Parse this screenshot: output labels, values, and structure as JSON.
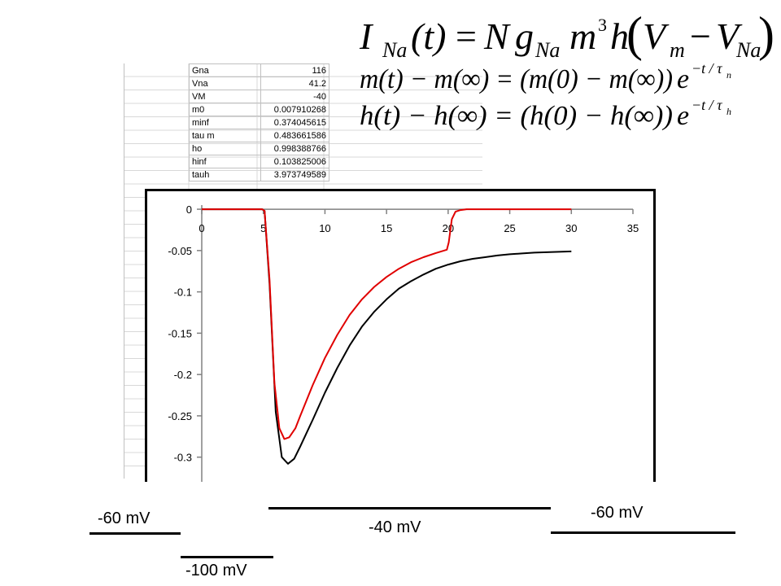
{
  "parameters": [
    {
      "name": "Gna",
      "value": "116"
    },
    {
      "name": "Vna",
      "value": "41.2"
    },
    {
      "name": "VM",
      "value": "-40"
    },
    {
      "name": "m0",
      "value": "0.007910268"
    },
    {
      "name": "minf",
      "value": "0.374045615"
    },
    {
      "name": "tau m",
      "value": "0.483661586"
    },
    {
      "name": "ho",
      "value": "0.998388766"
    },
    {
      "name": "hinf",
      "value": "0.103825006"
    },
    {
      "name": "tauh",
      "value": "3.973749589"
    }
  ],
  "equations": {
    "eq1": {
      "lhs": "I",
      "lhs_sub": "Na",
      "t": "(t)",
      "eq": "=",
      "N": "N",
      "g": "g",
      "g_sub": "Na",
      "m": "m",
      "m_exp": "3",
      "h": "h",
      "open": "(",
      "V": "V",
      "V_sub": "m",
      "minus": "−",
      "V2": "V",
      "V2_sub": "Na",
      "close": ")"
    },
    "eq2": {
      "lhs": "m(t) − m(∞) = (m(0) − m(∞))",
      "e": "e",
      "exp": "−t / τ",
      "exp_sub": "n"
    },
    "eq3": {
      "lhs": "h(t) − h(∞) = (h(0) − h(∞))",
      "e": "e",
      "exp": "−t / τ",
      "exp_sub": "h"
    }
  },
  "voltage_protocol": {
    "hold1": "-60 mV",
    "pre": "-100 mV",
    "test": "-40 mV",
    "hold2": "-60 mV"
  },
  "chart_data": {
    "type": "line",
    "x_ticks": [
      "0",
      "5",
      "10",
      "15",
      "20",
      "25",
      "30",
      "35"
    ],
    "y_ticks": [
      "0",
      "-0.05",
      "-0.1",
      "-0.15",
      "-0.2",
      "-0.25",
      "-0.3"
    ],
    "xlim": [
      0,
      35
    ],
    "ylim": [
      -0.32,
      0.005
    ],
    "grid": false,
    "series": [
      {
        "color": "#000000",
        "x": [
          0,
          4.9,
          5.1,
          5.5,
          6,
          6.5,
          7,
          7.5,
          8,
          9,
          10,
          11,
          12,
          13,
          14,
          15,
          16,
          17,
          18,
          19,
          20,
          21,
          22,
          23,
          24,
          25,
          26,
          27,
          28,
          29,
          30
        ],
        "y": [
          0,
          0,
          -0.002,
          -0.09,
          -0.245,
          -0.3,
          -0.308,
          -0.302,
          -0.287,
          -0.255,
          -0.222,
          -0.192,
          -0.165,
          -0.142,
          -0.124,
          -0.109,
          -0.096,
          -0.087,
          -0.079,
          -0.072,
          -0.067,
          -0.063,
          -0.06,
          -0.058,
          -0.056,
          -0.0545,
          -0.0535,
          -0.0525,
          -0.052,
          -0.0515,
          -0.051
        ]
      },
      {
        "color": "#e00000",
        "x": [
          0,
          4.9,
          5.1,
          5.5,
          5.9,
          6.3,
          6.7,
          7.1,
          7.6,
          8,
          9,
          10,
          11,
          12,
          13,
          14,
          15,
          16,
          17,
          18,
          19,
          19.9,
          20.05,
          20.3,
          20.6,
          21,
          21.5,
          22,
          23,
          30
        ],
        "y": [
          0,
          0,
          -0.002,
          -0.085,
          -0.21,
          -0.265,
          -0.278,
          -0.276,
          -0.265,
          -0.25,
          -0.213,
          -0.18,
          -0.152,
          -0.128,
          -0.109,
          -0.094,
          -0.082,
          -0.072,
          -0.064,
          -0.058,
          -0.053,
          -0.049,
          -0.04,
          -0.012,
          -0.003,
          -0.001,
          0,
          0,
          0,
          0
        ]
      }
    ]
  }
}
